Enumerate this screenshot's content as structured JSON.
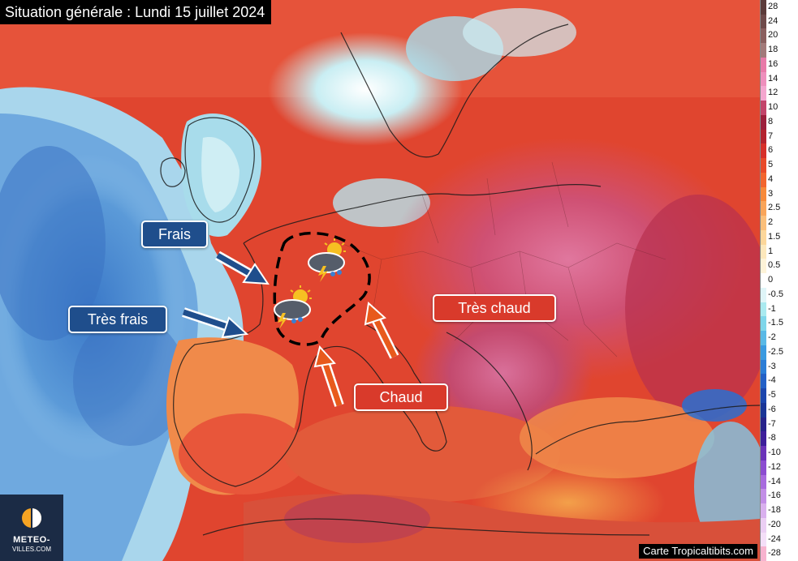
{
  "header": {
    "title": "Situation générale : Lundi 15 juillet 2024"
  },
  "labels": {
    "frais": "Frais",
    "tres_frais": "Très frais",
    "tres_chaud": "Très chaud",
    "chaud": "Chaud"
  },
  "colors": {
    "cool_label": "#1f4e8c",
    "warm_label": "#d93a2b",
    "arrow_cool": "#1f4e8c",
    "arrow_warm": "#e85a1c"
  },
  "scale": {
    "values": [
      "28",
      "24",
      "20",
      "18",
      "16",
      "14",
      "12",
      "10",
      "8",
      "7",
      "6",
      "5",
      "4",
      "3",
      "2.5",
      "2",
      "1.5",
      "1",
      "0.5",
      "0",
      "-0.5",
      "-1",
      "-1.5",
      "-2",
      "-2.5",
      "-3",
      "-4",
      "-5",
      "-6",
      "-7",
      "-8",
      "-10",
      "-12",
      "-14",
      "-16",
      "-18",
      "-20",
      "-24",
      "-28"
    ],
    "colors": [
      "#5b3b3a",
      "#6e4a4a",
      "#8a5f5f",
      "#a27a7a",
      "#e87aa8",
      "#ee8fbd",
      "#f4a6cf",
      "#c2446a",
      "#9c1f3c",
      "#b3232e",
      "#d6302a",
      "#e84a2a",
      "#f2662f",
      "#f78a3a",
      "#f9a55a",
      "#fbbf7a",
      "#fcd79b",
      "#fde8bc",
      "#fdf3d8",
      "#ffffff",
      "#dff5f8",
      "#aaeaf0",
      "#7fd6ea",
      "#5ab9e6",
      "#3a9ae0",
      "#2b7dd6",
      "#2360c6",
      "#1c46ad",
      "#1a3596",
      "#27228a",
      "#3d1f9a",
      "#6a33b8",
      "#8c4dd0",
      "#a86bde",
      "#c28ee6",
      "#d9b0ee",
      "#ebcff4",
      "#f4dff8",
      "#f7b3cf"
    ]
  },
  "credit": "Carte Tropicaltibits.com",
  "logo": {
    "line1": "METEO-",
    "line2": "VILLES.COM"
  },
  "icons": [
    "thunderstorm-sun-icon",
    "thunderstorm-sun-icon"
  ]
}
